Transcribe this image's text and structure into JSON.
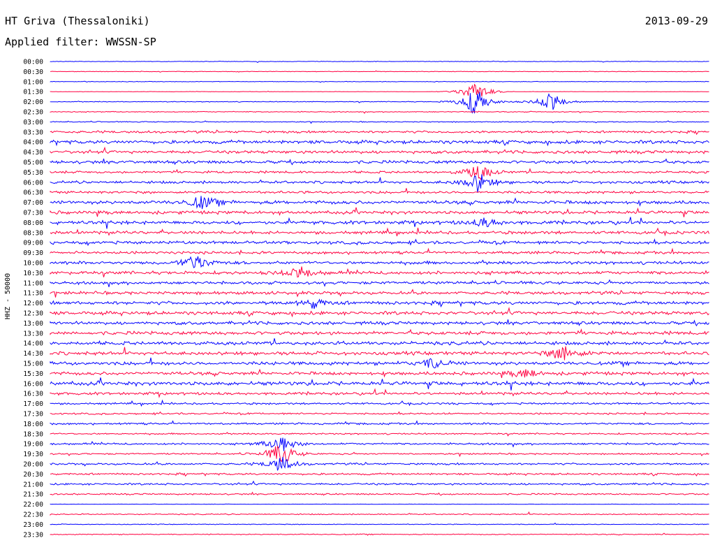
{
  "header": {
    "station": "HT Griva (Thessaloniki)",
    "date": "2013-09-29",
    "filter": "Applied filter: WWSSN-SP"
  },
  "chart_data": {
    "type": "line",
    "ylabel": "HHZ - 50000",
    "colors": [
      "#0000ff",
      "#ff0040"
    ],
    "rows": [
      "00:00",
      "00:30",
      "01:00",
      "01:30",
      "02:00",
      "02:30",
      "03:00",
      "03:30",
      "04:00",
      "04:30",
      "05:00",
      "05:30",
      "06:00",
      "06:30",
      "07:00",
      "07:30",
      "08:00",
      "08:30",
      "09:00",
      "09:30",
      "10:00",
      "10:30",
      "11:00",
      "11:30",
      "12:00",
      "12:30",
      "13:00",
      "13:30",
      "14:00",
      "14:30",
      "15:00",
      "15:30",
      "16:00",
      "16:30",
      "17:00",
      "17:30",
      "18:00",
      "18:30",
      "19:00",
      "19:30",
      "20:00",
      "20:30",
      "21:00",
      "21:30",
      "22:00",
      "22:30",
      "23:00",
      "23:30"
    ],
    "noise": [
      0.3,
      0.3,
      0.3,
      0.2,
      0.4,
      0.5,
      0.5,
      1.2,
      1.8,
      1.6,
      1.6,
      1.2,
      1.4,
      1.3,
      1.8,
      1.7,
      1.8,
      1.6,
      1.6,
      1.4,
      1.6,
      1.7,
      1.5,
      1.6,
      1.8,
      1.8,
      1.7,
      1.8,
      1.8,
      1.8,
      1.8,
      1.7,
      2.0,
      1.4,
      1.0,
      0.9,
      1.0,
      0.8,
      1.0,
      0.8,
      1.0,
      1.0,
      1.0,
      0.8,
      0.2,
      0.6,
      0.4,
      0.5
    ],
    "events": [
      {
        "row": 3,
        "x": 0.645,
        "amp": 16
      },
      {
        "row": 4,
        "x": 0.645,
        "amp": 22
      },
      {
        "row": 4,
        "x": 0.76,
        "amp": 14
      },
      {
        "row": 11,
        "x": 0.65,
        "amp": 12
      },
      {
        "row": 12,
        "x": 0.65,
        "amp": 14
      },
      {
        "row": 14,
        "x": 0.23,
        "amp": 10
      },
      {
        "row": 16,
        "x": 0.66,
        "amp": 7
      },
      {
        "row": 20,
        "x": 0.22,
        "amp": 12
      },
      {
        "row": 21,
        "x": 0.38,
        "amp": 8
      },
      {
        "row": 24,
        "x": 0.4,
        "amp": 7
      },
      {
        "row": 29,
        "x": 0.78,
        "amp": 12
      },
      {
        "row": 30,
        "x": 0.58,
        "amp": 8
      },
      {
        "row": 31,
        "x": 0.72,
        "amp": 7
      },
      {
        "row": 38,
        "x": 0.35,
        "amp": 14
      },
      {
        "row": 39,
        "x": 0.35,
        "amp": 18
      },
      {
        "row": 40,
        "x": 0.35,
        "amp": 12
      }
    ]
  }
}
